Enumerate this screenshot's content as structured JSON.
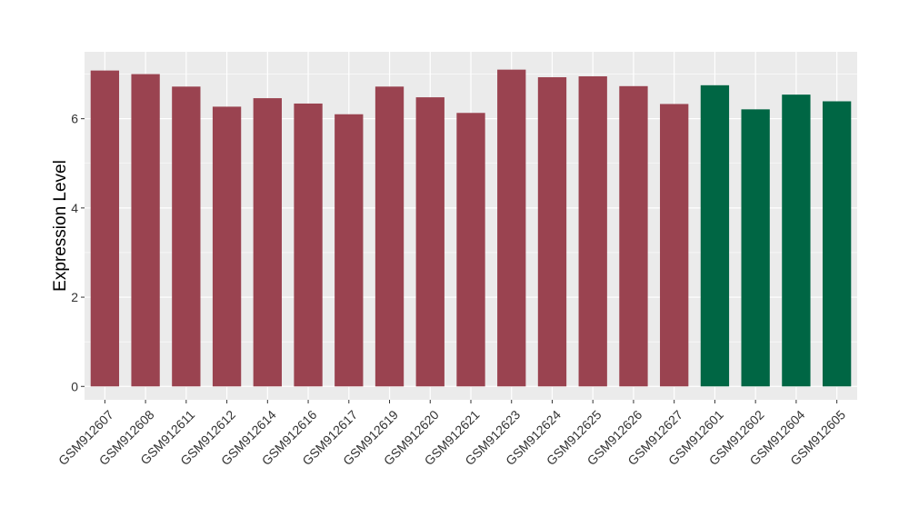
{
  "chart_data": {
    "type": "bar",
    "ylabel": "Expression Level",
    "xlabel": "",
    "title": "",
    "ylim": [
      -0.3,
      7.5
    ],
    "yticks": [
      0,
      2,
      4,
      6
    ],
    "grid": true,
    "legend": "none",
    "categories": [
      "GSM912607",
      "GSM912608",
      "GSM912611",
      "GSM912612",
      "GSM912614",
      "GSM912616",
      "GSM912617",
      "GSM912619",
      "GSM912620",
      "GSM912621",
      "GSM912623",
      "GSM912624",
      "GSM912625",
      "GSM912626",
      "GSM912627",
      "GSM912601",
      "GSM912602",
      "GSM912604",
      "GSM912605"
    ],
    "values": [
      7.08,
      7.0,
      6.72,
      6.27,
      6.46,
      6.34,
      6.1,
      6.72,
      6.48,
      6.13,
      7.1,
      6.93,
      6.95,
      6.73,
      6.33,
      6.75,
      6.21,
      6.54,
      6.39
    ],
    "groups": [
      "a",
      "a",
      "a",
      "a",
      "a",
      "a",
      "a",
      "a",
      "a",
      "a",
      "a",
      "a",
      "a",
      "a",
      "a",
      "b",
      "b",
      "b",
      "b"
    ],
    "colors": {
      "a": "#9a4350",
      "b": "#006644"
    },
    "panel_background": "#ebebeb",
    "gridline_color": "#ffffff"
  }
}
